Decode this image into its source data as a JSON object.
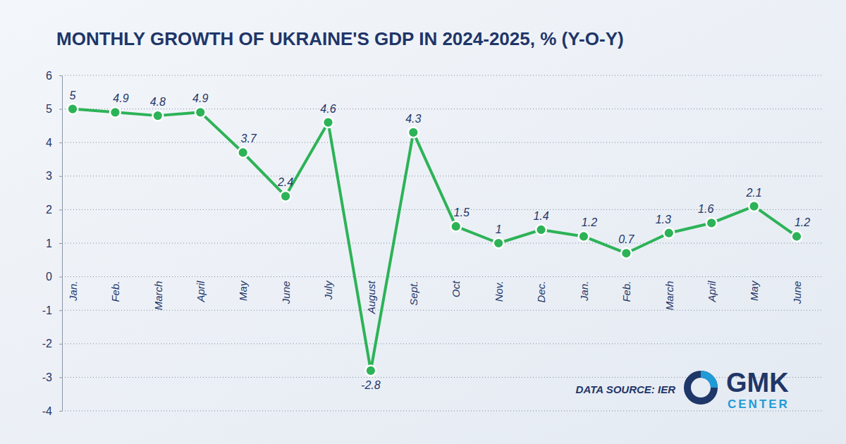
{
  "chart_data": {
    "type": "line",
    "title": "MONTHLY GROWTH OF UKRAINE'S GDP IN 2024-2025, % (Y-O-Y)",
    "categories": [
      "Jan.",
      "Feb.",
      "March",
      "April",
      "May",
      "June",
      "July",
      "August",
      "Sept.",
      "Oct",
      "Nov.",
      "Dec.",
      "Jan.",
      "Feb.",
      "March",
      "April",
      "May",
      "June"
    ],
    "values": [
      5,
      4.9,
      4.8,
      4.9,
      3.7,
      2.4,
      4.6,
      -2.8,
      4.3,
      1.5,
      1,
      1.4,
      1.2,
      0.7,
      1.3,
      1.6,
      2.1,
      1.2
    ],
    "color": "#2db357",
    "marker": "circle",
    "ylim": [
      -4,
      6
    ],
    "yticks": [
      -4,
      -3,
      -2,
      -1,
      0,
      1,
      2,
      3,
      4,
      5,
      6
    ],
    "grid": true,
    "data_labels": true,
    "annotations": [
      "DATA SOURCE: IER",
      "GMK",
      "CENTER"
    ]
  }
}
